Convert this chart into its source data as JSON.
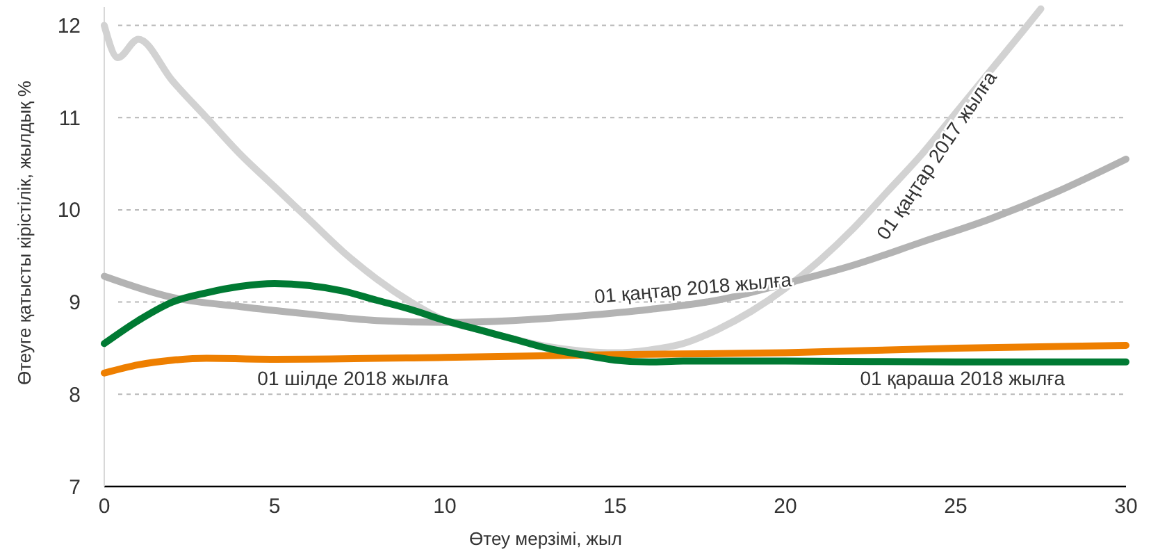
{
  "chart_data": {
    "type": "line",
    "xlabel": "Өтеу мерзімі, жыл",
    "ylabel": "Өтеуге қатысты кірістілік, жылдық %",
    "xlim": [
      0,
      30
    ],
    "xticks": [
      0,
      5,
      10,
      15,
      20,
      25,
      30
    ],
    "ylim": [
      7,
      12.2
    ],
    "yticks": [
      7,
      8,
      9,
      10,
      11,
      12
    ],
    "grid": "y",
    "marker": "none",
    "line_style": "solid",
    "series": [
      {
        "name": "01 қаңтар 2017 жылға",
        "color": "#d2d2d2",
        "x": [
          0,
          0.4,
          1,
          2,
          3,
          4,
          5,
          6,
          7,
          8,
          9,
          10,
          11,
          12,
          13,
          14,
          15,
          16,
          17,
          18,
          19,
          20,
          21,
          22,
          23,
          24,
          25,
          26,
          27,
          27.5
        ],
        "values": [
          12.0,
          11.65,
          11.85,
          11.4,
          11.0,
          10.6,
          10.25,
          9.9,
          9.55,
          9.25,
          9.0,
          8.8,
          8.7,
          8.6,
          8.52,
          8.47,
          8.45,
          8.48,
          8.55,
          8.7,
          8.9,
          9.15,
          9.45,
          9.8,
          10.2,
          10.6,
          11.05,
          11.5,
          11.95,
          12.18
        ]
      },
      {
        "name": "01 қаңтар 2018 жылға",
        "color": "#b3b3b3",
        "x": [
          0,
          2,
          4,
          6,
          8,
          10,
          12,
          14,
          16,
          18,
          20,
          22,
          24,
          26,
          28,
          30
        ],
        "values": [
          9.28,
          9.05,
          8.95,
          8.87,
          8.8,
          8.78,
          8.8,
          8.85,
          8.92,
          9.02,
          9.2,
          9.4,
          9.65,
          9.9,
          10.2,
          10.55
        ]
      },
      {
        "name": "01 шілде 2018 жылға",
        "color": "#ee7f00",
        "x": [
          0,
          1,
          2,
          3,
          5,
          10,
          15,
          20,
          25,
          30
        ],
        "values": [
          8.23,
          8.32,
          8.37,
          8.39,
          8.38,
          8.4,
          8.43,
          8.45,
          8.5,
          8.53
        ]
      },
      {
        "name": "01 қараша 2018 жылға",
        "color": "#007a33",
        "x": [
          0,
          1,
          2,
          3,
          4,
          5,
          6,
          7,
          8,
          9,
          10,
          11,
          12,
          13,
          14,
          15,
          16,
          17,
          20,
          25,
          30
        ],
        "values": [
          8.55,
          8.8,
          9.0,
          9.1,
          9.17,
          9.2,
          9.18,
          9.12,
          9.02,
          8.92,
          8.8,
          8.7,
          8.6,
          8.5,
          8.43,
          8.37,
          8.35,
          8.36,
          8.36,
          8.35,
          8.35
        ]
      }
    ]
  }
}
